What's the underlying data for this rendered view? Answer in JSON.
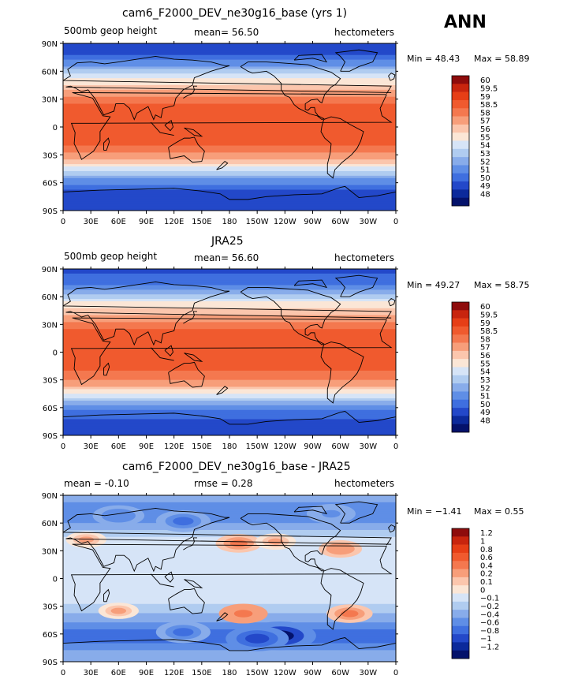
{
  "ann_label": "ANN",
  "chart_data": [
    {
      "type": "heatmap",
      "title": "cam6_F2000_DEV_ne30g16_base (yrs 1)",
      "left_string": "500mb geop height",
      "center_string": "mean=   56.50",
      "right_string": "hectometers",
      "min_text": "Min =   48.43",
      "max_text": "Max =   58.89",
      "stats": {
        "mean": 56.5,
        "min": 48.43,
        "max": 58.89
      },
      "levels": [
        "60",
        "59.5",
        "59",
        "58.5",
        "58",
        "57",
        "56",
        "55",
        "54",
        "53",
        "52",
        "51",
        "50",
        "49",
        "48"
      ],
      "colors": [
        "#8e0c0c",
        "#c8250e",
        "#e63e16",
        "#f05a2e",
        "#f4784f",
        "#f79e7a",
        "#fbc6ad",
        "#fbe6d6",
        "#d6e4f7",
        "#b0ccf0",
        "#88acea",
        "#5f8ee6",
        "#3f6fdf",
        "#2348c9",
        "#0c2a9b",
        "#04126b"
      ],
      "band_profile": [
        [
          90,
          49.0
        ],
        [
          75,
          50.3
        ],
        [
          65,
          52.2
        ],
        [
          55,
          54.4
        ],
        [
          45,
          56.2
        ],
        [
          35,
          57.7
        ],
        [
          25,
          58.5
        ],
        [
          15,
          58.6
        ],
        [
          0,
          58.7
        ],
        [
          -15,
          58.6
        ],
        [
          -25,
          58.4
        ],
        [
          -35,
          57.3
        ],
        [
          -45,
          54.6
        ],
        [
          -55,
          52.2
        ],
        [
          -65,
          50.3
        ],
        [
          -75,
          49.4
        ],
        [
          -90,
          49.2
        ]
      ],
      "xlabels": [
        "0",
        "30E",
        "60E",
        "90E",
        "120E",
        "150E",
        "180",
        "150W",
        "120W",
        "90W",
        "60W",
        "30W",
        "0"
      ],
      "ylabels": [
        "90N",
        "60N",
        "30N",
        "0",
        "30S",
        "60S",
        "90S"
      ]
    },
    {
      "type": "heatmap",
      "title": "JRA25",
      "left_string": "500mb geop height",
      "center_string": "mean=   56.60",
      "right_string": "hectometers",
      "min_text": "Min =   49.27",
      "max_text": "Max =   58.75",
      "stats": {
        "mean": 56.6,
        "min": 49.27,
        "max": 58.75
      },
      "levels": [
        "60",
        "59.5",
        "59",
        "58.5",
        "58",
        "57",
        "56",
        "55",
        "54",
        "53",
        "52",
        "51",
        "50",
        "49",
        "48"
      ],
      "colors": [
        "#8e0c0c",
        "#c8250e",
        "#e63e16",
        "#f05a2e",
        "#f4784f",
        "#f79e7a",
        "#fbc6ad",
        "#fbe6d6",
        "#d6e4f7",
        "#b0ccf0",
        "#88acea",
        "#5f8ee6",
        "#3f6fdf",
        "#2348c9",
        "#0c2a9b",
        "#04126b"
      ],
      "band_profile": [
        [
          90,
          49.6
        ],
        [
          75,
          50.7
        ],
        [
          65,
          52.5
        ],
        [
          55,
          54.8
        ],
        [
          45,
          56.5
        ],
        [
          35,
          57.8
        ],
        [
          25,
          58.5
        ],
        [
          15,
          58.6
        ],
        [
          0,
          58.7
        ],
        [
          -15,
          58.6
        ],
        [
          -25,
          58.4
        ],
        [
          -35,
          57.4
        ],
        [
          -45,
          55.0
        ],
        [
          -55,
          52.6
        ],
        [
          -65,
          50.6
        ],
        [
          -75,
          49.8
        ],
        [
          -90,
          49.6
        ]
      ],
      "xlabels": [
        "0",
        "30E",
        "60E",
        "90E",
        "120E",
        "150E",
        "180",
        "150W",
        "120W",
        "90W",
        "60W",
        "30W",
        "0"
      ],
      "ylabels": [
        "90N",
        "60N",
        "30N",
        "0",
        "30S",
        "60S",
        "90S"
      ]
    },
    {
      "type": "heatmap",
      "title": "cam6_F2000_DEV_ne30g16_base - JRA25",
      "left_string": "mean =   -0.10",
      "center_string": "rmse =     0.28",
      "right_string": "hectometers",
      "min_text": "Min =   −1.41",
      "max_text": "Max =     0.55",
      "stats": {
        "mean": -0.1,
        "rmse": 0.28,
        "min": -1.41,
        "max": 0.55
      },
      "levels": [
        "1.2",
        "1",
        "0.8",
        "0.6",
        "0.4",
        "0.2",
        "0.1",
        "0",
        "−0.1",
        "−0.2",
        "−0.4",
        "−0.6",
        "−0.8",
        "−1",
        "−1.2"
      ],
      "colors": [
        "#8e0c0c",
        "#c8250e",
        "#e63e16",
        "#f05a2e",
        "#f4784f",
        "#f79e7a",
        "#fbc6ad",
        "#fbe6d6",
        "#d6e4f7",
        "#b0ccf0",
        "#88acea",
        "#5f8ee6",
        "#3f6fdf",
        "#2348c9",
        "#0c2a9b",
        "#04126b"
      ],
      "band_profile": [
        [
          90,
          -0.35
        ],
        [
          75,
          -0.45
        ],
        [
          65,
          -0.55
        ],
        [
          55,
          -0.25
        ],
        [
          45,
          -0.1
        ],
        [
          35,
          -0.05
        ],
        [
          20,
          -0.05
        ],
        [
          0,
          -0.05
        ],
        [
          -20,
          -0.05
        ],
        [
          -35,
          -0.15
        ],
        [
          -50,
          -0.45
        ],
        [
          -60,
          -0.8
        ],
        [
          -70,
          -0.6
        ],
        [
          -80,
          -0.3
        ],
        [
          -90,
          -0.3
        ]
      ],
      "anomalies": [
        {
          "lon": 130,
          "lat": 62,
          "value": -0.7
        },
        {
          "lon": 60,
          "lat": 68,
          "value": -0.6
        },
        {
          "lon": 290,
          "lat": 70,
          "value": -0.5
        },
        {
          "lon": 190,
          "lat": 38,
          "value": 0.4
        },
        {
          "lon": 25,
          "lat": 42,
          "value": 0.2
        },
        {
          "lon": 300,
          "lat": 32,
          "value": 0.3
        },
        {
          "lon": 230,
          "lat": 40,
          "value": 0.2
        },
        {
          "lon": 195,
          "lat": -38,
          "value": 0.5
        },
        {
          "lon": 310,
          "lat": -38,
          "value": 0.4
        },
        {
          "lon": 60,
          "lat": -35,
          "value": 0.2
        },
        {
          "lon": 235,
          "lat": -62,
          "value": -1.3
        },
        {
          "lon": 210,
          "lat": -65,
          "value": -1.0
        },
        {
          "lon": 130,
          "lat": -58,
          "value": -0.7
        }
      ],
      "xlabels": [
        "0",
        "30E",
        "60E",
        "90E",
        "120E",
        "150E",
        "180",
        "150W",
        "120W",
        "90W",
        "60W",
        "30W",
        "0"
      ],
      "ylabels": [
        "90N",
        "60N",
        "30N",
        "0",
        "30S",
        "60S",
        "90S"
      ]
    }
  ]
}
